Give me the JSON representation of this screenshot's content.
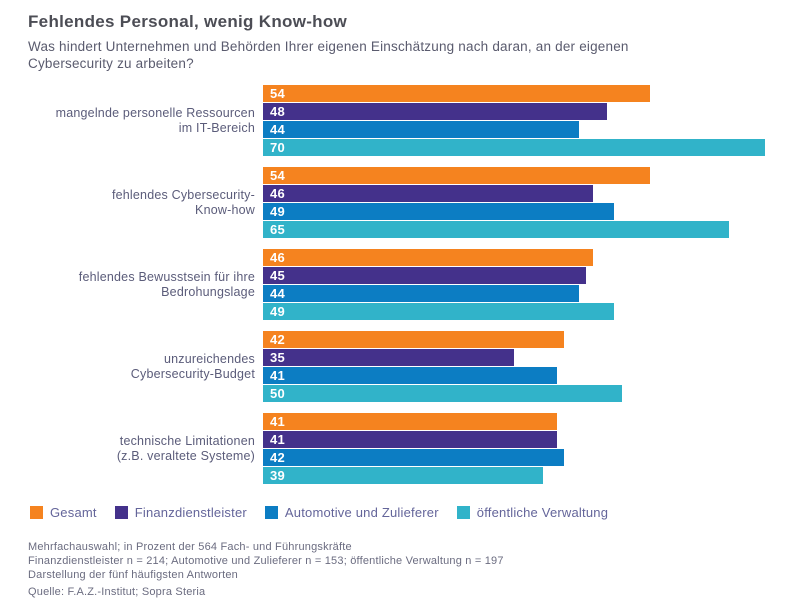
{
  "header": {
    "title": "Fehlendes Personal, wenig Know-how",
    "subtitle": "Was hindert Unternehmen und Behörden Ihrer eigenen Einschätzung nach daran, an der eigenen\nCybersecurity zu arbeiten?"
  },
  "chart_data": {
    "type": "bar",
    "orientation": "horizontal",
    "unit": "percent",
    "title": "Fehlendes Personal, wenig Know-how",
    "categories": [
      "mangelnde personelle Ressourcen\nim IT-Bereich",
      "fehlendes Cybersecurity-\nKnow-how",
      "fehlendes Bewusstsein für ihre\nBedrohungslage",
      "unzureichendes\nCybersecurity-Budget",
      "technische Limitationen\n(z.B. veraltete Systeme)"
    ],
    "series": [
      {
        "name": "Gesamt",
        "color": "#F5831F",
        "values": [
          54,
          54,
          46,
          42,
          41
        ]
      },
      {
        "name": "Finanzdienstleister",
        "color": "#44318B",
        "values": [
          48,
          46,
          45,
          35,
          41
        ]
      },
      {
        "name": "Automotive und Zulieferer",
        "color": "#0C7DC3",
        "values": [
          44,
          49,
          44,
          41,
          42
        ]
      },
      {
        "name": "öffentliche Verwaltung",
        "color": "#31B3C9",
        "values": [
          70,
          65,
          49,
          50,
          39
        ]
      }
    ],
    "xlim": [
      0,
      70
    ],
    "value_labels": true,
    "grid": false,
    "legend_position": "bottom"
  },
  "footnotes": [
    "Mehrfachauswahl; in Prozent der 564 Fach- und Führungskräfte",
    "Finanzdienstleister n = 214; Automotive und Zulieferer n = 153; öffentliche Verwaltung n = 197",
    "Darstellung der fünf häufigsten Antworten",
    "Quelle: F.A.Z.-Institut; Sopra Steria"
  ]
}
